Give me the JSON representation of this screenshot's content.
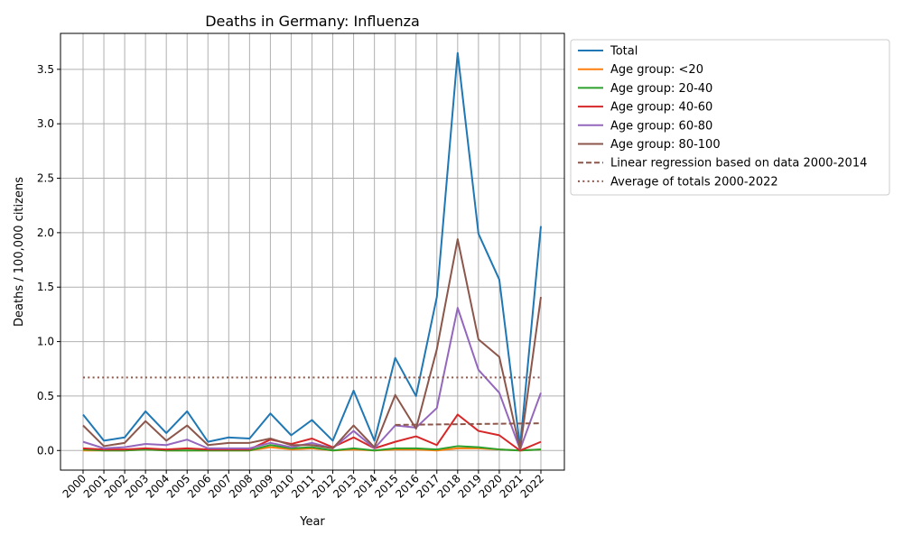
{
  "chart_data": {
    "type": "line",
    "title": "Deaths in Germany: Influenza",
    "xlabel": "Year",
    "ylabel": "Deaths / 100,000 citizens",
    "ylim": [
      -0.18,
      3.83
    ],
    "grid": true,
    "legend_placement": "outside-top-right",
    "x": [
      2000,
      2001,
      2002,
      2003,
      2004,
      2005,
      2006,
      2007,
      2008,
      2009,
      2010,
      2011,
      2012,
      2013,
      2014,
      2015,
      2016,
      2017,
      2018,
      2019,
      2020,
      2021,
      2022
    ],
    "yticks": [
      "0.0",
      "0.5",
      "1.0",
      "1.5",
      "2.0",
      "2.5",
      "3.0",
      "3.5"
    ],
    "series": [
      {
        "name": "Total",
        "color": "#1f77b4",
        "style": "solid",
        "values": [
          0.33,
          0.09,
          0.12,
          0.36,
          0.16,
          0.36,
          0.08,
          0.12,
          0.11,
          0.34,
          0.14,
          0.28,
          0.09,
          0.55,
          0.09,
          0.85,
          0.5,
          1.41,
          3.65,
          1.99,
          1.57,
          0.03,
          2.06
        ]
      },
      {
        "name": "Age group: <20",
        "color": "#ff7f0e",
        "style": "solid",
        "values": [
          0.0,
          0.0,
          0.0,
          0.01,
          0.0,
          0.0,
          0.0,
          0.0,
          0.0,
          0.03,
          0.01,
          0.02,
          0.0,
          0.01,
          0.0,
          0.01,
          0.01,
          0.0,
          0.02,
          0.02,
          0.01,
          0.0,
          0.01
        ]
      },
      {
        "name": "Age group: 20-40",
        "color": "#2ca02c",
        "style": "solid",
        "values": [
          0.01,
          0.0,
          0.0,
          0.01,
          0.0,
          0.0,
          0.0,
          0.0,
          0.0,
          0.05,
          0.02,
          0.03,
          0.0,
          0.02,
          0.0,
          0.02,
          0.02,
          0.01,
          0.04,
          0.03,
          0.01,
          0.0,
          0.01
        ]
      },
      {
        "name": "Age group: 40-60",
        "color": "#d62728",
        "style": "solid",
        "values": [
          0.02,
          0.01,
          0.01,
          0.02,
          0.01,
          0.02,
          0.01,
          0.01,
          0.01,
          0.1,
          0.06,
          0.11,
          0.03,
          0.12,
          0.02,
          0.08,
          0.13,
          0.05,
          0.33,
          0.18,
          0.14,
          0.0,
          0.08
        ]
      },
      {
        "name": "Age group: 60-80",
        "color": "#9467bd",
        "style": "solid",
        "values": [
          0.08,
          0.02,
          0.03,
          0.06,
          0.05,
          0.1,
          0.02,
          0.02,
          0.02,
          0.07,
          0.03,
          0.07,
          0.02,
          0.18,
          0.02,
          0.23,
          0.21,
          0.39,
          1.31,
          0.74,
          0.53,
          0.01,
          0.53
        ]
      },
      {
        "name": "Age group: 80-100",
        "color": "#8c564b",
        "style": "solid",
        "values": [
          0.23,
          0.04,
          0.07,
          0.27,
          0.09,
          0.23,
          0.05,
          0.07,
          0.07,
          0.11,
          0.05,
          0.05,
          0.02,
          0.23,
          0.03,
          0.51,
          0.2,
          0.93,
          1.94,
          1.02,
          0.86,
          0.01,
          1.41
        ]
      },
      {
        "name": "Linear regression based on data 2000-2014",
        "color": "#8c564b",
        "style": "dashed",
        "x": [
          2015,
          2022
        ],
        "values": [
          0.235,
          0.25
        ]
      },
      {
        "name": "Average of totals 2000-2022",
        "color": "#8c564b",
        "style": "dotted",
        "x": [
          2000,
          2022
        ],
        "values": [
          0.67,
          0.67
        ]
      }
    ]
  }
}
